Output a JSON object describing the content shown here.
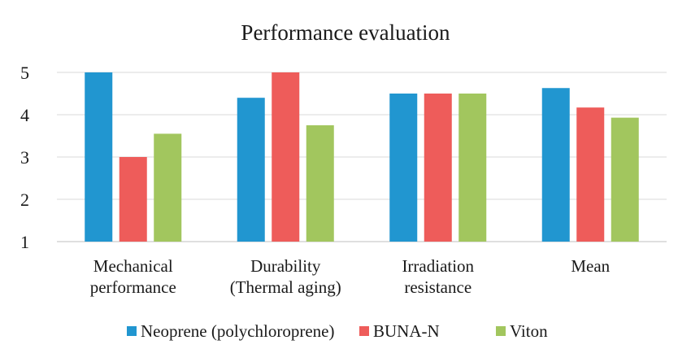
{
  "chart_data": {
    "type": "bar",
    "title": "Performance evaluation",
    "categories": [
      [
        "Mechanical",
        "performance"
      ],
      [
        "Durability",
        "(Thermal aging)"
      ],
      [
        "Irradiation",
        "resistance"
      ],
      [
        "Mean"
      ]
    ],
    "series": [
      {
        "name": "Neoprene (polychloroprene)",
        "color": "#2196d0",
        "values": [
          5.0,
          4.4,
          4.5,
          4.63
        ]
      },
      {
        "name": "BUNA-N",
        "color": "#ee5c5a",
        "values": [
          3.0,
          5.0,
          4.5,
          4.17
        ]
      },
      {
        "name": "Viton",
        "color": "#a2c65e",
        "values": [
          3.55,
          3.75,
          4.5,
          3.93
        ]
      }
    ],
    "y_ticks": [
      "1",
      "2",
      "3",
      "4",
      "5"
    ],
    "ylim": [
      1,
      5
    ],
    "xlabel": "",
    "ylabel": "",
    "grid": true,
    "legend_position": "bottom"
  }
}
